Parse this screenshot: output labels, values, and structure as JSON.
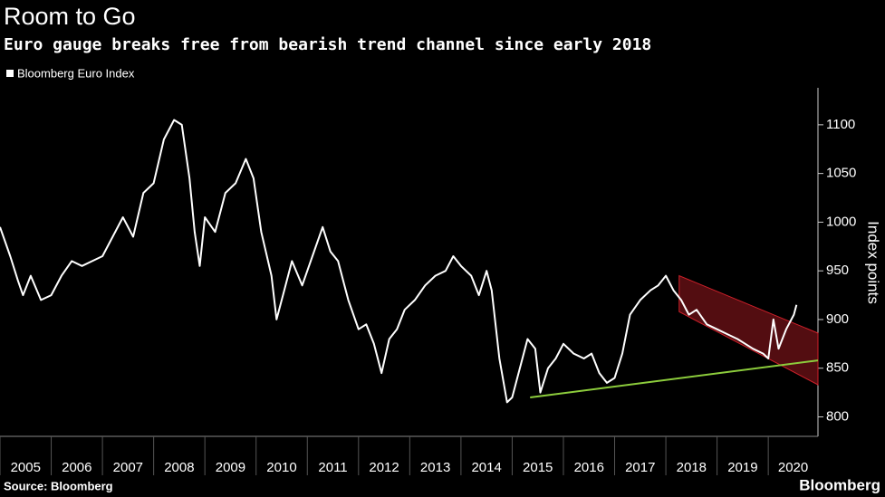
{
  "chart_data": {
    "type": "line",
    "title": "Room to Go",
    "subtitle": "Euro gauge breaks free from bearish trend channel since early 2018",
    "y_label": "Index points",
    "source": "Source: Bloomberg",
    "brand": "Bloomberg",
    "x": [
      2005.0,
      2005.2,
      2005.35,
      2005.45,
      2005.6,
      2005.8,
      2006.0,
      2006.2,
      2006.4,
      2006.6,
      2006.8,
      2007.0,
      2007.2,
      2007.4,
      2007.6,
      2007.8,
      2008.0,
      2008.2,
      2008.4,
      2008.55,
      2008.7,
      2008.8,
      2008.9,
      2009.0,
      2009.2,
      2009.4,
      2009.6,
      2009.8,
      2009.95,
      2010.1,
      2010.3,
      2010.4,
      2010.55,
      2010.7,
      2010.9,
      2011.1,
      2011.3,
      2011.45,
      2011.6,
      2011.8,
      2012.0,
      2012.15,
      2012.3,
      2012.45,
      2012.6,
      2012.75,
      2012.9,
      2013.1,
      2013.3,
      2013.5,
      2013.7,
      2013.85,
      2014.0,
      2014.2,
      2014.35,
      2014.5,
      2014.6,
      2014.75,
      2014.9,
      2015.0,
      2015.15,
      2015.3,
      2015.45,
      2015.55,
      2015.7,
      2015.85,
      2016.0,
      2016.2,
      2016.4,
      2016.55,
      2016.7,
      2016.85,
      2017.0,
      2017.15,
      2017.3,
      2017.5,
      2017.7,
      2017.85,
      2018.0,
      2018.15,
      2018.3,
      2018.45,
      2018.6,
      2018.8,
      2019.0,
      2019.2,
      2019.4,
      2019.55,
      2019.7,
      2019.9,
      2020.0,
      2020.1,
      2020.2,
      2020.35,
      2020.5,
      2020.55
    ],
    "series": [
      {
        "name": "Bloomberg Euro Index",
        "color": "#ffffff",
        "values": [
          995,
          965,
          940,
          925,
          945,
          920,
          925,
          945,
          960,
          955,
          960,
          965,
          985,
          1005,
          985,
          1030,
          1040,
          1085,
          1105,
          1100,
          1045,
          990,
          955,
          1005,
          990,
          1030,
          1040,
          1065,
          1045,
          990,
          945,
          900,
          930,
          960,
          935,
          965,
          995,
          970,
          960,
          920,
          890,
          895,
          875,
          845,
          880,
          890,
          910,
          920,
          935,
          945,
          950,
          965,
          955,
          945,
          925,
          950,
          930,
          860,
          815,
          820,
          850,
          880,
          870,
          825,
          850,
          860,
          875,
          865,
          860,
          865,
          845,
          835,
          840,
          865,
          905,
          920,
          930,
          935,
          945,
          930,
          920,
          905,
          910,
          895,
          890,
          885,
          880,
          875,
          870,
          865,
          860,
          900,
          870,
          890,
          905,
          915
        ]
      }
    ],
    "channel": {
      "color": "#d0202a",
      "x": [
        2018.26,
        2020.97
      ],
      "upper": [
        945,
        886
      ],
      "lower": [
        908,
        833
      ]
    },
    "support": {
      "color": "#8ccc3c",
      "x": [
        2015.35,
        2020.97
      ],
      "values": [
        820,
        858
      ]
    },
    "xlim": [
      2005,
      2020.97
    ],
    "xticks": [
      {
        "value": 2005,
        "label": "2005"
      },
      {
        "value": 2006,
        "label": "2006"
      },
      {
        "value": 2007,
        "label": "2007"
      },
      {
        "value": 2008,
        "label": "2008"
      },
      {
        "value": 2009,
        "label": "2009"
      },
      {
        "value": 2010,
        "label": "2010"
      },
      {
        "value": 2011,
        "label": "2011"
      },
      {
        "value": 2012,
        "label": "2012"
      },
      {
        "value": 2013,
        "label": "2013"
      },
      {
        "value": 2014,
        "label": "2014"
      },
      {
        "value": 2015,
        "label": "2015"
      },
      {
        "value": 2016,
        "label": "2016"
      },
      {
        "value": 2017,
        "label": "2017"
      },
      {
        "value": 2018,
        "label": "2018"
      },
      {
        "value": 2019,
        "label": "2019"
      },
      {
        "value": 2020,
        "label": "2020"
      }
    ],
    "ylim": [
      780,
      1138
    ],
    "yticks": [
      800,
      850,
      900,
      950,
      1000,
      1050,
      1100
    ]
  }
}
